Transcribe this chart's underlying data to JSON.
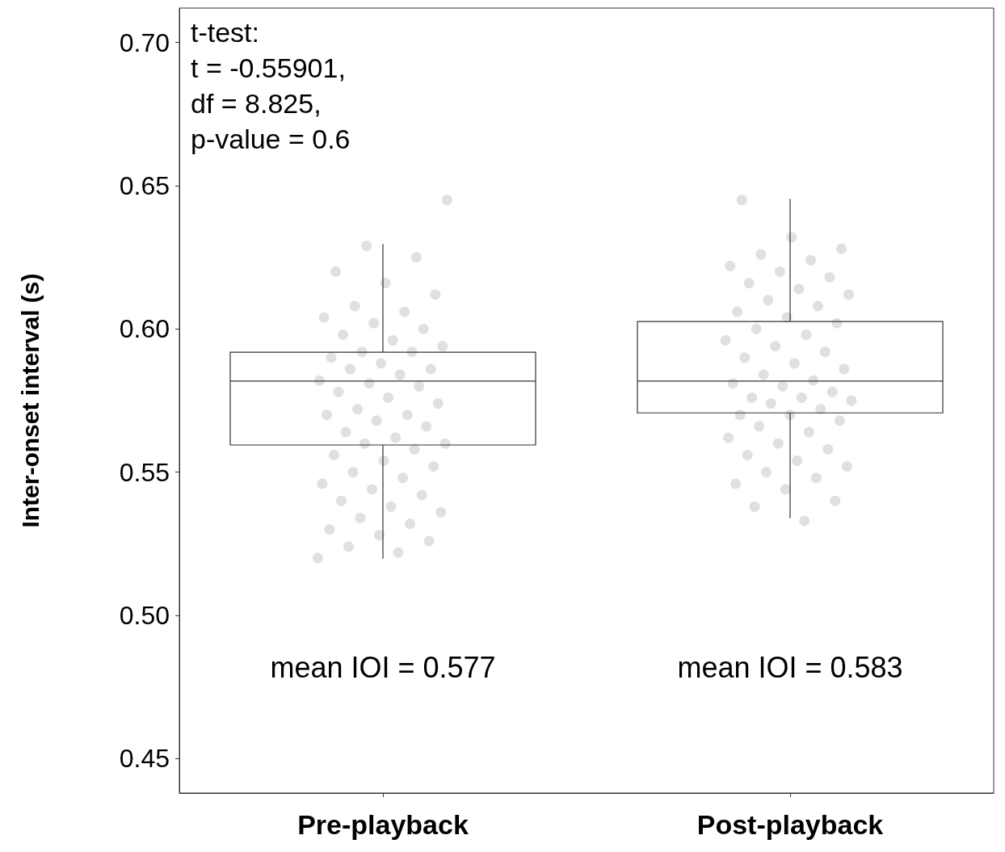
{
  "chart_data": {
    "type": "box",
    "categories": [
      "Pre-playback",
      "Post-playback"
    ],
    "ylabel": "Inter-onset interval (s)",
    "ylim": [
      0.438,
      0.712
    ],
    "yticks": [
      {
        "value": 0.45,
        "label": "0.45"
      },
      {
        "value": 0.5,
        "label": "0.50"
      },
      {
        "value": 0.55,
        "label": "0.55"
      },
      {
        "value": 0.6,
        "label": "0.60"
      },
      {
        "value": 0.65,
        "label": "0.65"
      },
      {
        "value": 0.7,
        "label": "0.70"
      }
    ],
    "grid": false,
    "marker": "circle",
    "annotations": [
      "t-test:\nt = -0.55901,\ndf = 8.825,\np-value = 0.6",
      "mean IOI = 0.577",
      "mean IOI = 0.583"
    ],
    "series": [
      {
        "type": "box",
        "color": "#333333",
        "boxes": [
          {
            "low": 0.5198,
            "q1": 0.5595,
            "median": 0.5818,
            "q3": 0.5919,
            "high": 0.6296
          },
          {
            "low": 0.5339,
            "q1": 0.5707,
            "median": 0.5818,
            "q3": 0.6026,
            "high": 0.6454
          }
        ]
      },
      {
        "type": "scatter",
        "color": "#999999",
        "x": [
          "Pre-playback",
          "Pre-playback",
          "Pre-playback",
          "Pre-playback",
          "Pre-playback",
          "Pre-playback",
          "Pre-playback",
          "Pre-playback",
          "Pre-playback",
          "Pre-playback",
          "Pre-playback",
          "Pre-playback",
          "Pre-playback",
          "Pre-playback",
          "Pre-playback",
          "Pre-playback",
          "Pre-playback",
          "Pre-playback",
          "Pre-playback",
          "Pre-playback",
          "Pre-playback",
          "Pre-playback",
          "Pre-playback",
          "Pre-playback",
          "Pre-playback",
          "Pre-playback",
          "Pre-playback",
          "Pre-playback",
          "Pre-playback",
          "Pre-playback",
          "Pre-playback",
          "Pre-playback",
          "Pre-playback",
          "Pre-playback",
          "Pre-playback",
          "Pre-playback",
          "Pre-playback",
          "Pre-playback",
          "Pre-playback",
          "Pre-playback",
          "Pre-playback",
          "Pre-playback",
          "Pre-playback",
          "Pre-playback",
          "Pre-playback",
          "Pre-playback",
          "Pre-playback",
          "Pre-playback",
          "Pre-playback",
          "Pre-playback",
          "Pre-playback",
          "Pre-playback",
          "Pre-playback",
          "Pre-playback",
          "Pre-playback",
          "Pre-playback",
          "Post-playback",
          "Post-playback",
          "Post-playback",
          "Post-playback",
          "Post-playback",
          "Post-playback",
          "Post-playback",
          "Post-playback",
          "Post-playback",
          "Post-playback",
          "Post-playback",
          "Post-playback",
          "Post-playback",
          "Post-playback",
          "Post-playback",
          "Post-playback",
          "Post-playback",
          "Post-playback",
          "Post-playback",
          "Post-playback",
          "Post-playback",
          "Post-playback",
          "Post-playback",
          "Post-playback",
          "Post-playback",
          "Post-playback",
          "Post-playback",
          "Post-playback",
          "Post-playback",
          "Post-playback",
          "Post-playback",
          "Post-playback",
          "Post-playback",
          "Post-playback",
          "Post-playback",
          "Post-playback",
          "Post-playback",
          "Post-playback",
          "Post-playback",
          "Post-playback",
          "Post-playback",
          "Post-playback",
          "Post-playback",
          "Post-playback",
          "Post-playback",
          "Post-playback",
          "Post-playback",
          "Post-playback",
          "Post-playback",
          "Post-playback",
          "Post-playback",
          "Post-playback"
        ],
        "values": [
          0.52,
          0.522,
          0.524,
          0.526,
          0.528,
          0.53,
          0.532,
          0.534,
          0.536,
          0.538,
          0.54,
          0.542,
          0.544,
          0.546,
          0.548,
          0.55,
          0.552,
          0.554,
          0.556,
          0.558,
          0.56,
          0.56,
          0.562,
          0.564,
          0.566,
          0.568,
          0.57,
          0.57,
          0.572,
          0.574,
          0.576,
          0.578,
          0.58,
          0.581,
          0.582,
          0.584,
          0.586,
          0.586,
          0.588,
          0.59,
          0.592,
          0.592,
          0.594,
          0.596,
          0.598,
          0.6,
          0.602,
          0.604,
          0.606,
          0.608,
          0.612,
          0.616,
          0.62,
          0.625,
          0.629,
          0.645,
          0.533,
          0.538,
          0.54,
          0.544,
          0.546,
          0.548,
          0.55,
          0.552,
          0.554,
          0.556,
          0.558,
          0.56,
          0.562,
          0.564,
          0.566,
          0.568,
          0.57,
          0.57,
          0.572,
          0.574,
          0.575,
          0.576,
          0.576,
          0.578,
          0.58,
          0.581,
          0.582,
          0.584,
          0.586,
          0.588,
          0.59,
          0.592,
          0.594,
          0.596,
          0.598,
          0.6,
          0.602,
          0.604,
          0.606,
          0.608,
          0.61,
          0.612,
          0.614,
          0.616,
          0.618,
          0.62,
          0.622,
          0.624,
          0.626,
          0.628,
          0.632,
          0.645
        ]
      }
    ]
  }
}
